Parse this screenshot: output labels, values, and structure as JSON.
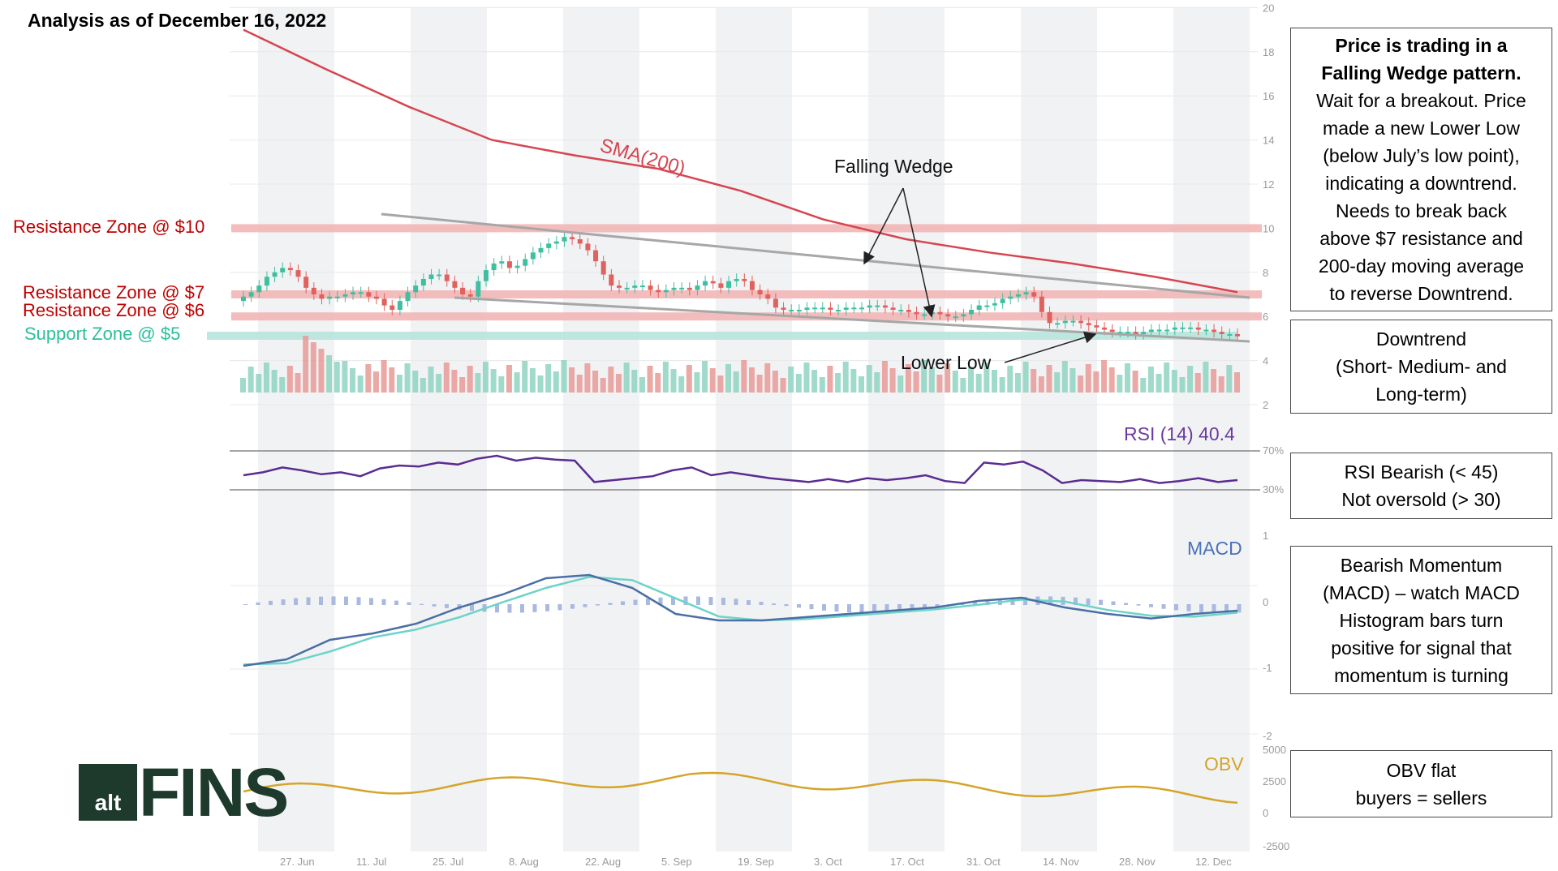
{
  "header": {
    "title": "Analysis as of December 16, 2022"
  },
  "zones": [
    {
      "label": "Resistance Zone @ $10",
      "price": 10,
      "color": "#c00000"
    },
    {
      "label": "Resistance Zone @ $7",
      "price": 7,
      "color": "#c00000"
    },
    {
      "label": "Resistance Zone @ $6",
      "price": 6,
      "color": "#c00000"
    },
    {
      "label": "Support Zone @ $5",
      "price": 5,
      "color": "#2bbf9c"
    }
  ],
  "annotations": {
    "sma_label": "SMA(200)",
    "falling_wedge": "Falling Wedge",
    "lower_low": "Lower Low"
  },
  "indicator_labels": {
    "rsi": "RSI (14)  40.4",
    "macd": "MACD",
    "obv": "OBV"
  },
  "boxes": [
    {
      "name": "pattern-box",
      "lines": [
        {
          "text": "Price is trading in a",
          "bold": true
        },
        {
          "text": "Falling Wedge pattern.",
          "bold": true
        },
        {
          "text": "Wait for a breakout. Price",
          "bold": false
        },
        {
          "text": "made a new Lower Low",
          "bold": false
        },
        {
          "text": "(below July’s low point),",
          "bold": false
        },
        {
          "text": "indicating a downtrend.",
          "bold": false
        },
        {
          "text": "Needs to break back",
          "bold": false
        },
        {
          "text": "above $7 resistance and",
          "bold": false
        },
        {
          "text": "200-day moving average",
          "bold": false
        },
        {
          "text": "to reverse Downtrend.",
          "bold": false
        }
      ]
    },
    {
      "name": "trend-box",
      "lines": [
        {
          "text": "Downtrend",
          "bold": false
        },
        {
          "text": "(Short- Medium- and",
          "bold": false
        },
        {
          "text": "Long-term)",
          "bold": false
        }
      ]
    },
    {
      "name": "rsi-box",
      "lines": [
        {
          "text": "RSI Bearish (< 45)",
          "bold": false
        },
        {
          "text": "Not oversold (> 30)",
          "bold": false
        }
      ]
    },
    {
      "name": "macd-box",
      "lines": [
        {
          "text": "Bearish Momentum",
          "bold": false
        },
        {
          "text": "(MACD) – watch MACD",
          "bold": false
        },
        {
          "text": "Histogram bars turn",
          "bold": false
        },
        {
          "text": "positive for signal that",
          "bold": false
        },
        {
          "text": "momentum is turning",
          "bold": false
        }
      ]
    },
    {
      "name": "obv-box",
      "lines": [
        {
          "text": "OBV flat",
          "bold": false
        },
        {
          "text": "buyers = sellers",
          "bold": false
        }
      ]
    }
  ],
  "logo": {
    "alt": "alt",
    "fins": "FINS"
  },
  "colors": {
    "sma": "#d64550",
    "rsi": "#5b2c91",
    "macd": "#4a6fa5",
    "macd_signal": "#6fd3c8",
    "obv": "#d4a52a",
    "up": "#3fbfa0",
    "down": "#e0615d",
    "zone_red": "#f2b6b6",
    "zone_green": "#b7e6dc"
  },
  "chart_data": {
    "type": "candlestick",
    "x_ticks": [
      "27. Jun",
      "11. Jul",
      "25. Jul",
      "8. Aug",
      "22. Aug",
      "5. Sep",
      "19. Sep",
      "3. Oct",
      "17. Oct",
      "31. Oct",
      "14. Nov",
      "28. Nov",
      "12. Dec"
    ],
    "price_axis": {
      "ticks": [
        2,
        4,
        6,
        8,
        10,
        12,
        14,
        16,
        18,
        20
      ],
      "ylim": [
        2,
        20
      ]
    },
    "rsi_axis": {
      "ticks": [
        "70%",
        "30%"
      ],
      "value": 40.4
    },
    "macd_axis": {
      "ticks": [
        "1",
        "0",
        "-1",
        "-2"
      ]
    },
    "obv_axis": {
      "ticks": [
        "5000",
        "2500",
        "0",
        "-2500"
      ]
    },
    "price_close": [
      6.9,
      7.1,
      7.4,
      7.8,
      8.0,
      8.2,
      8.1,
      7.8,
      7.3,
      7.0,
      6.8,
      6.9,
      6.9,
      7.0,
      7.1,
      7.1,
      6.9,
      6.8,
      6.5,
      6.3,
      6.7,
      7.1,
      7.4,
      7.7,
      7.9,
      7.9,
      7.6,
      7.3,
      7.0,
      6.9,
      7.6,
      8.1,
      8.4,
      8.5,
      8.2,
      8.3,
      8.6,
      8.9,
      9.1,
      9.3,
      9.4,
      9.6,
      9.5,
      9.3,
      9.0,
      8.5,
      7.9,
      7.4,
      7.3,
      7.3,
      7.4,
      7.4,
      7.2,
      7.1,
      7.2,
      7.3,
      7.3,
      7.2,
      7.4,
      7.6,
      7.5,
      7.3,
      7.6,
      7.7,
      7.6,
      7.2,
      7.0,
      6.8,
      6.4,
      6.3,
      6.3,
      6.3,
      6.4,
      6.4,
      6.4,
      6.3,
      6.3,
      6.4,
      6.4,
      6.4,
      6.5,
      6.5,
      6.4,
      6.3,
      6.3,
      6.2,
      6.1,
      6.1,
      6.2,
      6.1,
      6.0,
      6.0,
      6.1,
      6.3,
      6.5,
      6.5,
      6.6,
      6.8,
      6.9,
      7.0,
      7.1,
      6.9,
      6.2,
      5.7,
      5.7,
      5.8,
      5.8,
      5.7,
      5.6,
      5.5,
      5.4,
      5.3,
      5.3,
      5.3,
      5.2,
      5.3,
      5.4,
      5.4,
      5.4,
      5.5,
      5.5,
      5.5,
      5.4,
      5.4,
      5.3,
      5.2,
      5.2,
      5.1
    ],
    "sma200": [
      19.0,
      17.2,
      15.5,
      14.0,
      13.3,
      12.7,
      11.7,
      10.4,
      9.5,
      8.9,
      8.4,
      7.8,
      7.1
    ],
    "rsi": [
      45,
      48,
      53,
      50,
      46,
      48,
      44,
      52,
      55,
      54,
      58,
      56,
      62,
      65,
      60,
      63,
      61,
      60,
      38,
      40,
      42,
      44,
      50,
      53,
      45,
      48,
      45,
      42,
      40,
      38,
      41,
      38,
      42,
      40,
      42,
      45,
      39,
      37,
      58,
      56,
      59,
      50,
      37,
      40,
      39,
      38,
      41,
      37,
      39,
      42,
      38,
      40
    ]
  }
}
